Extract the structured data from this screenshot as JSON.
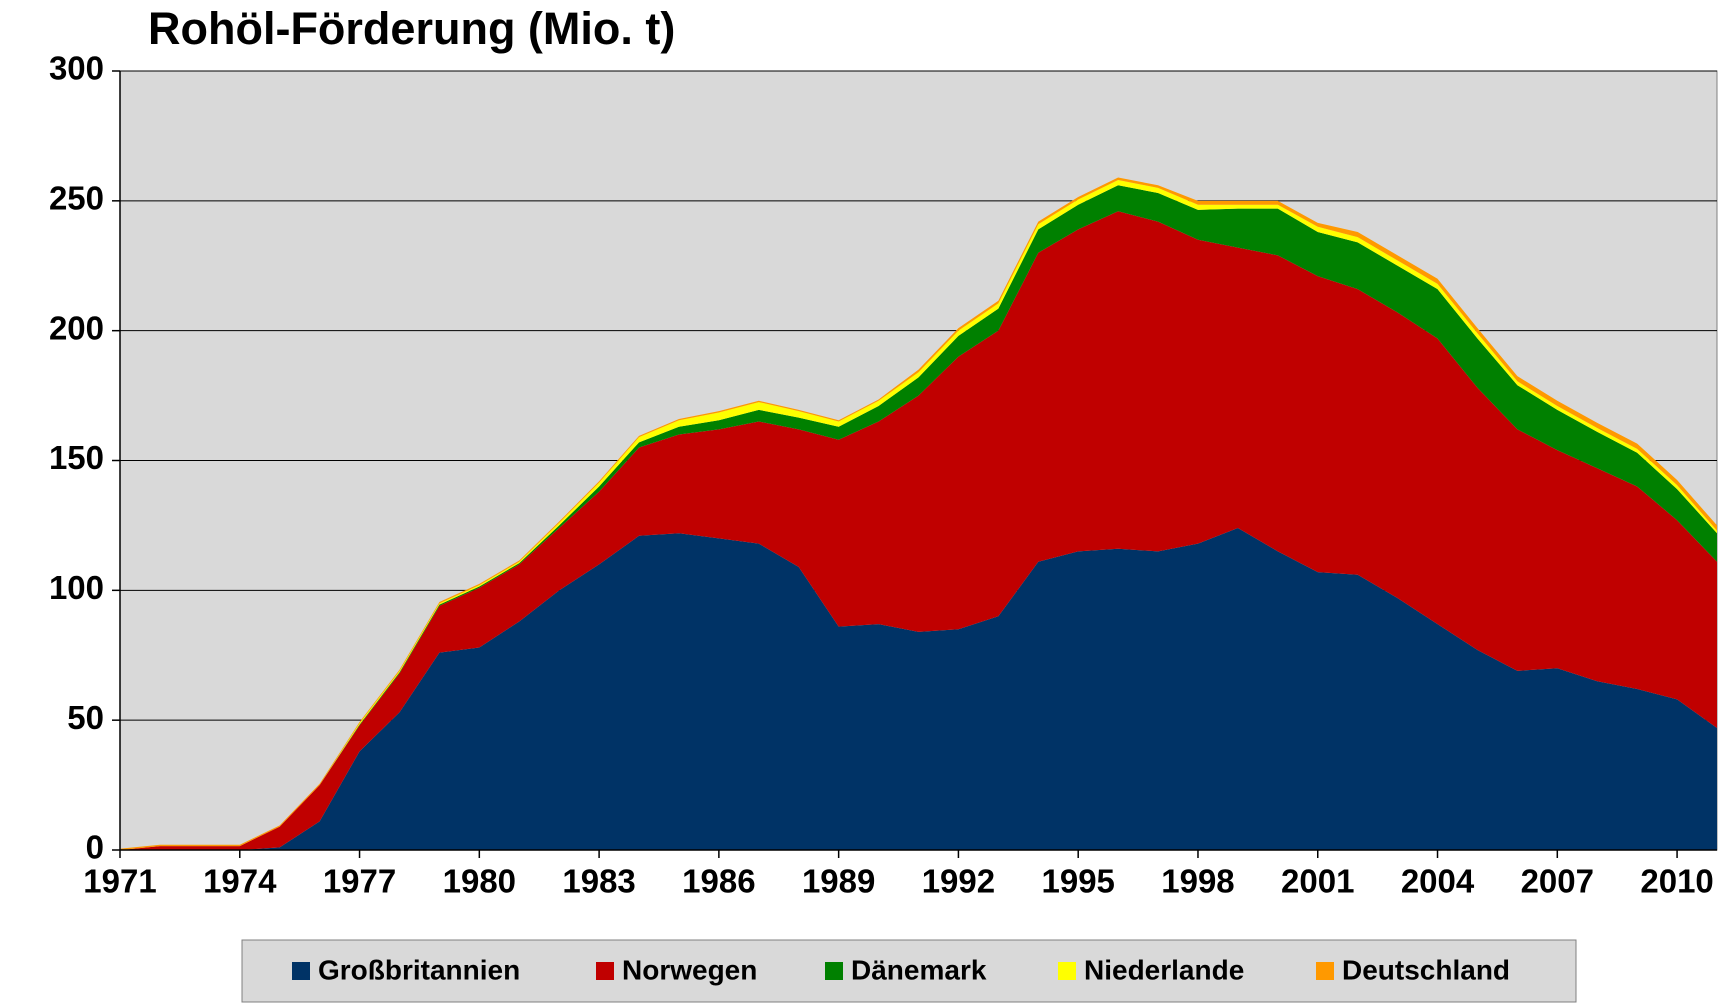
{
  "chart_data": {
    "type": "stacked-area",
    "title": "Rohöl-Förderung (Mio. t)",
    "x": [
      1971,
      1972,
      1973,
      1974,
      1975,
      1976,
      1977,
      1978,
      1979,
      1980,
      1981,
      1982,
      1983,
      1984,
      1985,
      1986,
      1987,
      1988,
      1989,
      1990,
      1991,
      1992,
      1993,
      1994,
      1995,
      1996,
      1997,
      1998,
      1999,
      2000,
      2001,
      2002,
      2003,
      2004,
      2005,
      2006,
      2007,
      2008,
      2009,
      2010,
      2011
    ],
    "xlim": [
      1971,
      2011
    ],
    "xticks": [
      1971,
      1974,
      1977,
      1980,
      1983,
      1986,
      1989,
      1992,
      1995,
      1998,
      2001,
      2004,
      2007,
      2010
    ],
    "ylim": [
      0,
      300
    ],
    "yticks": [
      0,
      50,
      100,
      150,
      200,
      250,
      300
    ],
    "grid": true,
    "series": [
      {
        "name": "Großbritannien",
        "color": "#003366",
        "values": [
          0,
          0,
          0,
          0,
          1,
          11,
          38,
          53,
          76,
          78,
          88,
          100,
          110,
          121,
          122,
          120,
          118,
          109,
          86,
          87,
          84,
          85,
          90,
          111,
          115,
          116,
          115,
          118,
          124,
          115,
          107,
          106,
          97,
          87,
          77,
          69,
          70,
          65,
          62,
          58,
          47
        ]
      },
      {
        "name": "Norwegen",
        "color": "#c00000",
        "values": [
          0,
          1.5,
          1.5,
          1.5,
          8,
          14,
          10,
          15,
          18,
          23,
          22,
          24,
          28,
          34,
          38,
          42,
          47,
          53,
          72,
          78,
          91,
          105,
          110,
          119,
          124,
          130,
          127,
          117,
          108,
          114,
          114,
          110,
          110,
          110,
          101,
          93,
          84,
          82,
          78,
          69,
          64
        ]
      },
      {
        "name": "Dänemark",
        "color": "#008000",
        "values": [
          0,
          0,
          0,
          0,
          0,
          0,
          0.3,
          0.4,
          0.5,
          0.5,
          0.5,
          1,
          2,
          2,
          3,
          3.5,
          4.5,
          4.5,
          5,
          6,
          7,
          8,
          8.5,
          9,
          9.5,
          10,
          11,
          11.5,
          15,
          18,
          17,
          18,
          18,
          19,
          19,
          17,
          15.5,
          14,
          13,
          12,
          11
        ]
      },
      {
        "name": "Niederlande",
        "color": "#ffff00",
        "values": [
          0,
          0,
          0,
          0,
          0,
          0,
          0.5,
          0.5,
          0.5,
          0.5,
          0.5,
          1,
          1.5,
          2,
          2.5,
          3,
          3,
          2.5,
          2,
          2,
          2,
          2,
          2,
          2,
          2,
          2,
          2,
          2,
          1.5,
          1.5,
          2,
          2,
          2,
          2,
          2,
          1.5,
          1.5,
          1.5,
          1.5,
          1.5,
          1
        ]
      },
      {
        "name": "Deutschland",
        "color": "#ff9900",
        "values": [
          0.5,
          0.5,
          0.5,
          0.5,
          0.5,
          0.5,
          0.5,
          0.5,
          0.5,
          0.5,
          0.5,
          0.5,
          0.5,
          0.5,
          0.5,
          0.5,
          0.5,
          0.5,
          0.5,
          0.5,
          1,
          1,
          1,
          1,
          1,
          1,
          1,
          1.5,
          1.5,
          1.5,
          1.5,
          2,
          2,
          2,
          2,
          2,
          2,
          2,
          2,
          2,
          2
        ]
      }
    ]
  }
}
